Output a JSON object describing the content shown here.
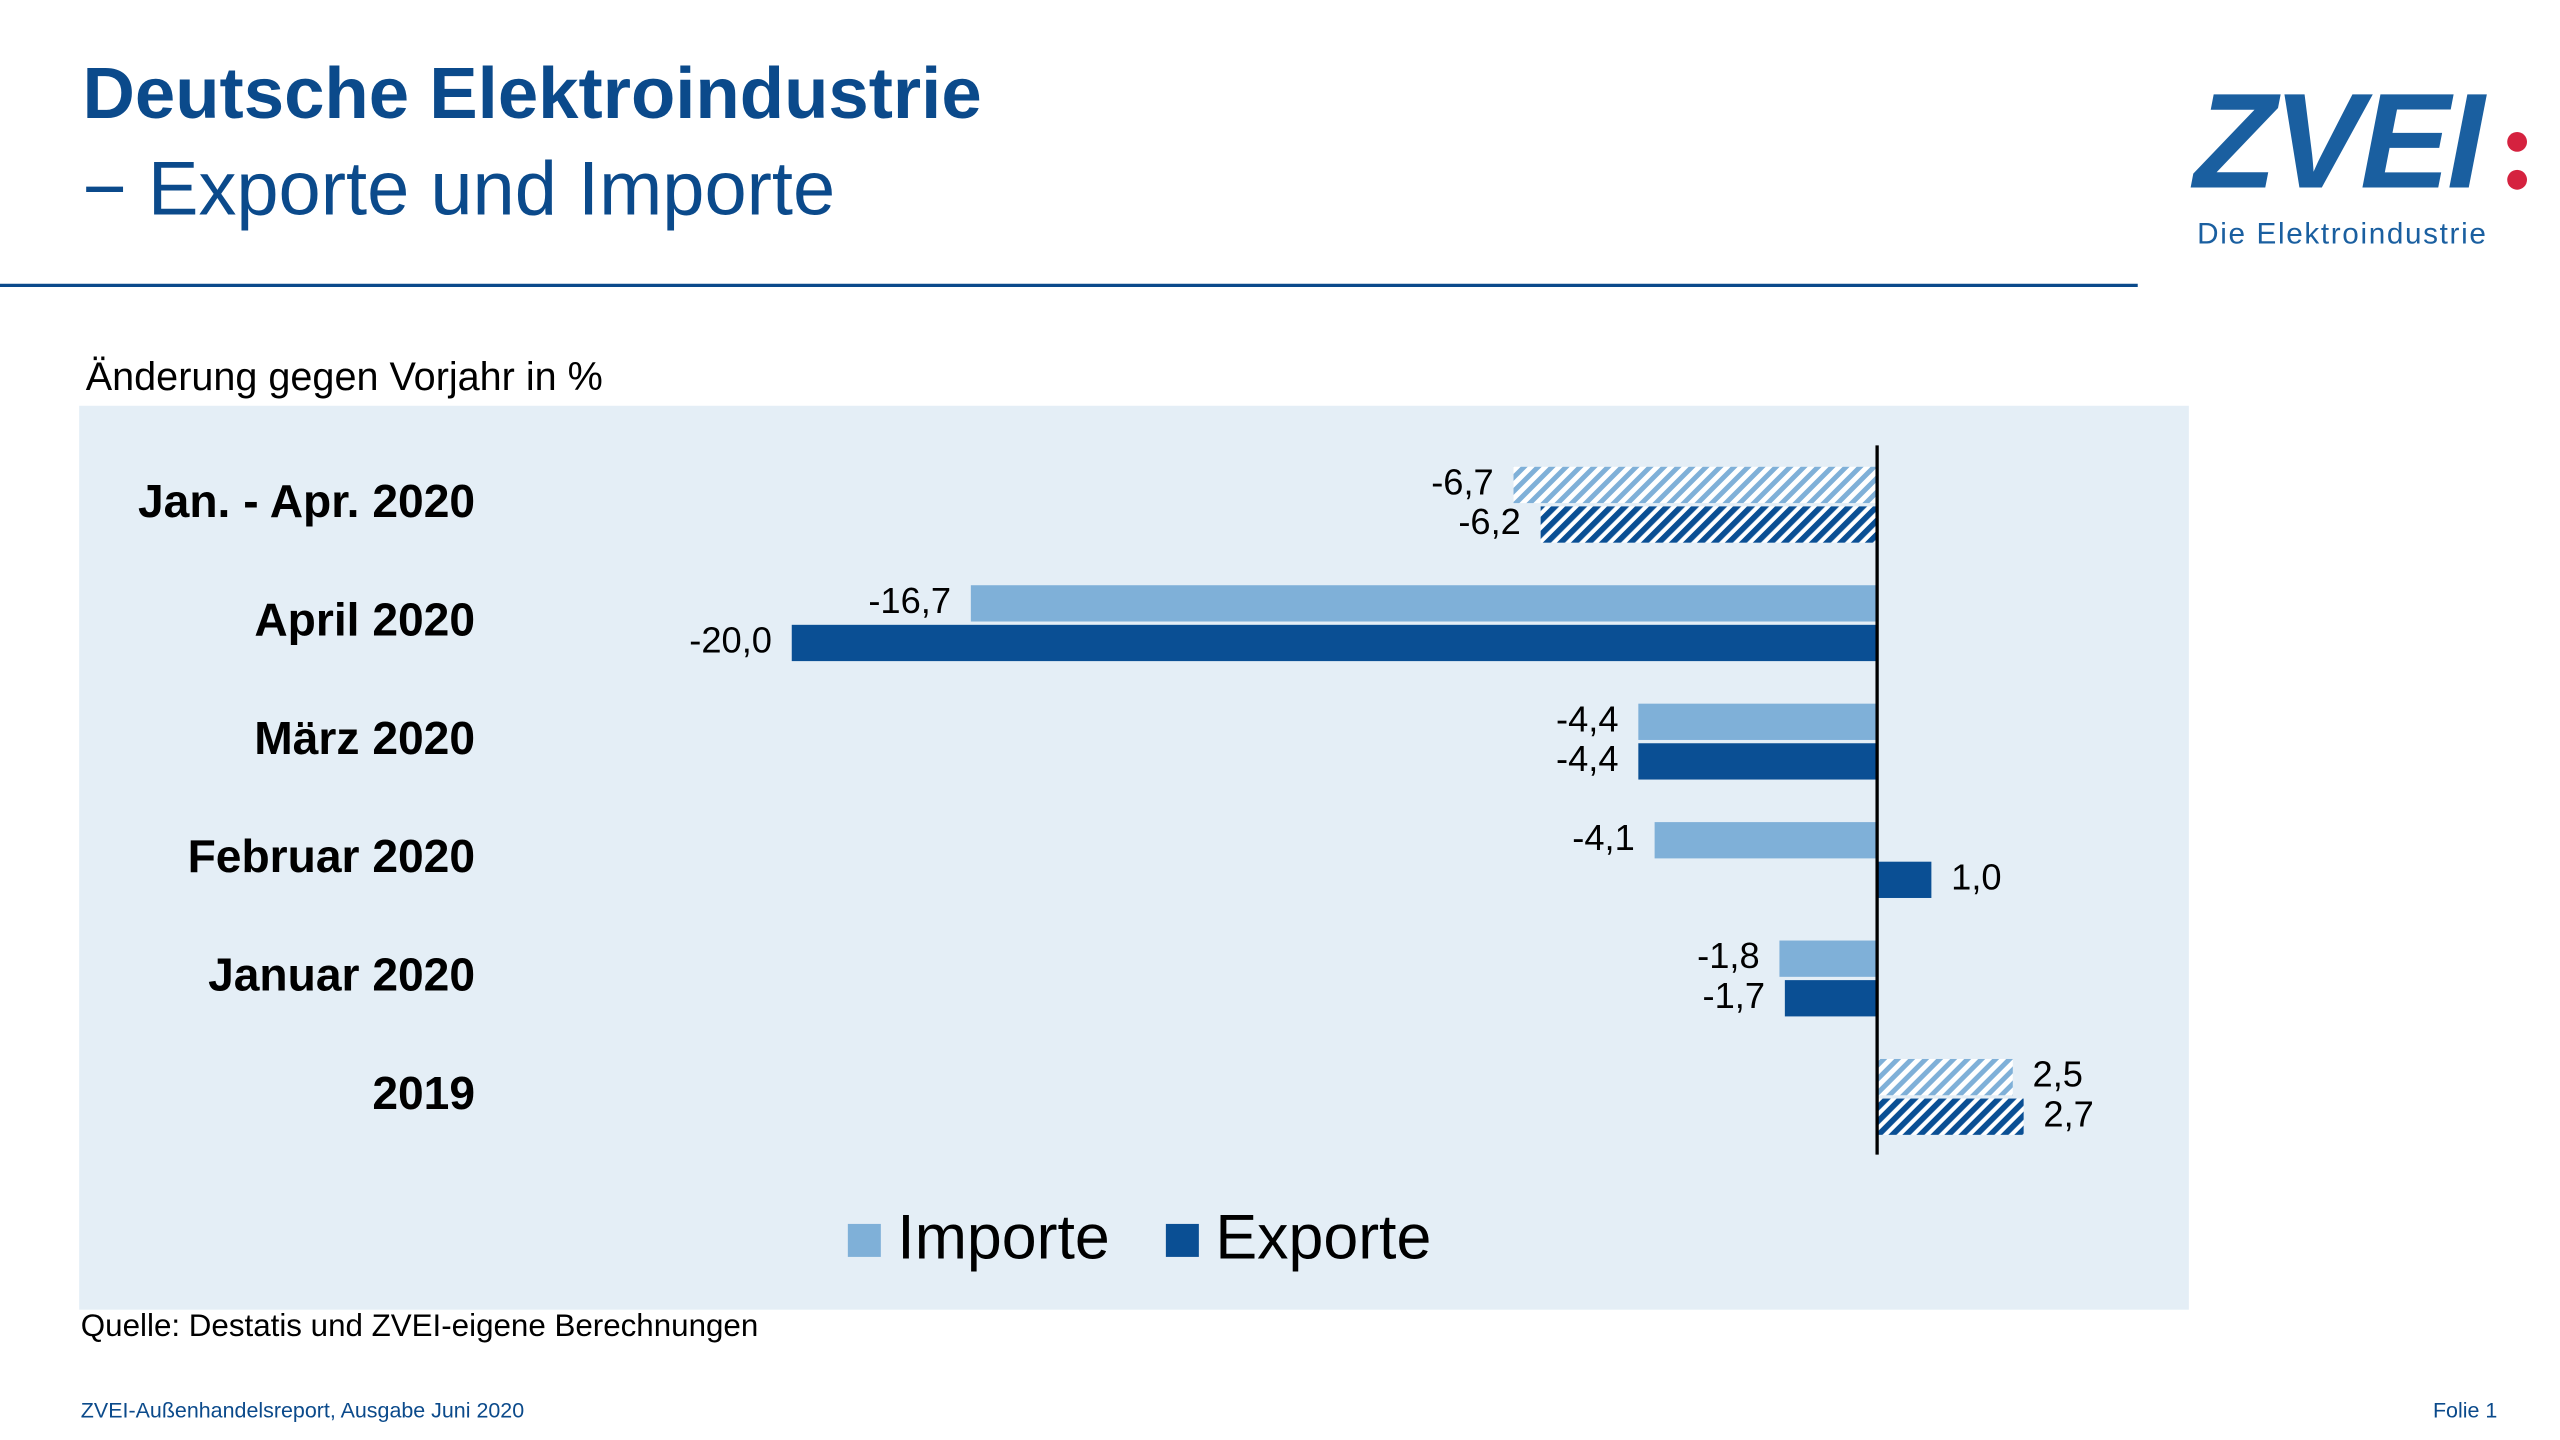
{
  "header": {
    "title": "Deutsche Elektroindustrie",
    "subtitle": "− Exporte und Importe"
  },
  "logo": {
    "text": "ZVEI",
    "tagline": "Die Elektroindustrie"
  },
  "chart_data": {
    "type": "hbar",
    "xlabel": "Änderung gegen Vorjahr in %",
    "categories": [
      "Jan. - Apr. 2020",
      "April 2020",
      "März 2020",
      "Februar 2020",
      "Januar 2020",
      "2019"
    ],
    "hatched": [
      true,
      false,
      false,
      false,
      false,
      true
    ],
    "series": [
      {
        "name": "Importe",
        "color": "#7fb0d8",
        "values": [
          -6.7,
          -16.7,
          -4.4,
          -4.1,
          -1.8,
          2.5
        ],
        "value_labels": [
          "-6,7",
          "-16,7",
          "-4,4",
          "-4,1",
          "-1,8",
          "2,5"
        ]
      },
      {
        "name": "Exporte",
        "color": "#0a4f94",
        "values": [
          -6.2,
          -20.0,
          -4.4,
          1.0,
          -1.7,
          2.7
        ],
        "value_labels": [
          "-6,2",
          "-20,0",
          "-4,4",
          "1,0",
          "-1,7",
          "2,7"
        ]
      }
    ],
    "xlim": [
      -25,
      5
    ],
    "legend": "bottom"
  },
  "source": "Quelle: Destatis und ZVEI-eigene Berechnungen",
  "footer": {
    "left": "ZVEI-Außenhandelsreport, Ausgabe Juni 2020",
    "right": "Folie 1"
  }
}
